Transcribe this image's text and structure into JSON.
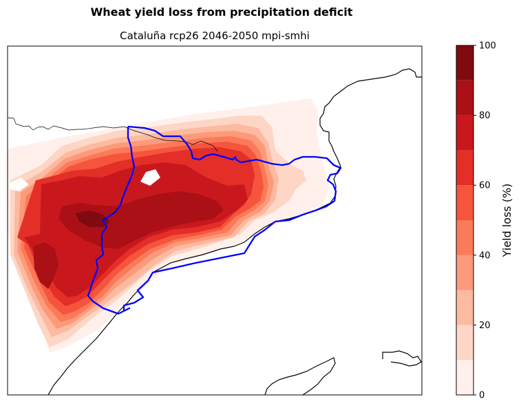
{
  "figure": {
    "title": "Wheat yield loss from precipitation deficit",
    "subtitle": "Cataluña rcp26 2046-2050 mpi-smhi"
  },
  "colorbar": {
    "label": "Yield loss (%)",
    "ticks": [
      "0",
      "20",
      "40",
      "60",
      "80",
      "100"
    ],
    "levels": [
      0,
      10,
      20,
      30,
      40,
      50,
      60,
      70,
      80,
      90,
      100
    ],
    "colors": [
      "#fff0eb",
      "#fdd6c6",
      "#fcbaa0",
      "#fc9a7a",
      "#fb7a5a",
      "#f5553d",
      "#e32f27",
      "#c9181d",
      "#aa1016",
      "#7f0a11"
    ]
  },
  "map": {
    "region_outline_color": "#0000ff",
    "coastline_color": "#000000"
  }
}
